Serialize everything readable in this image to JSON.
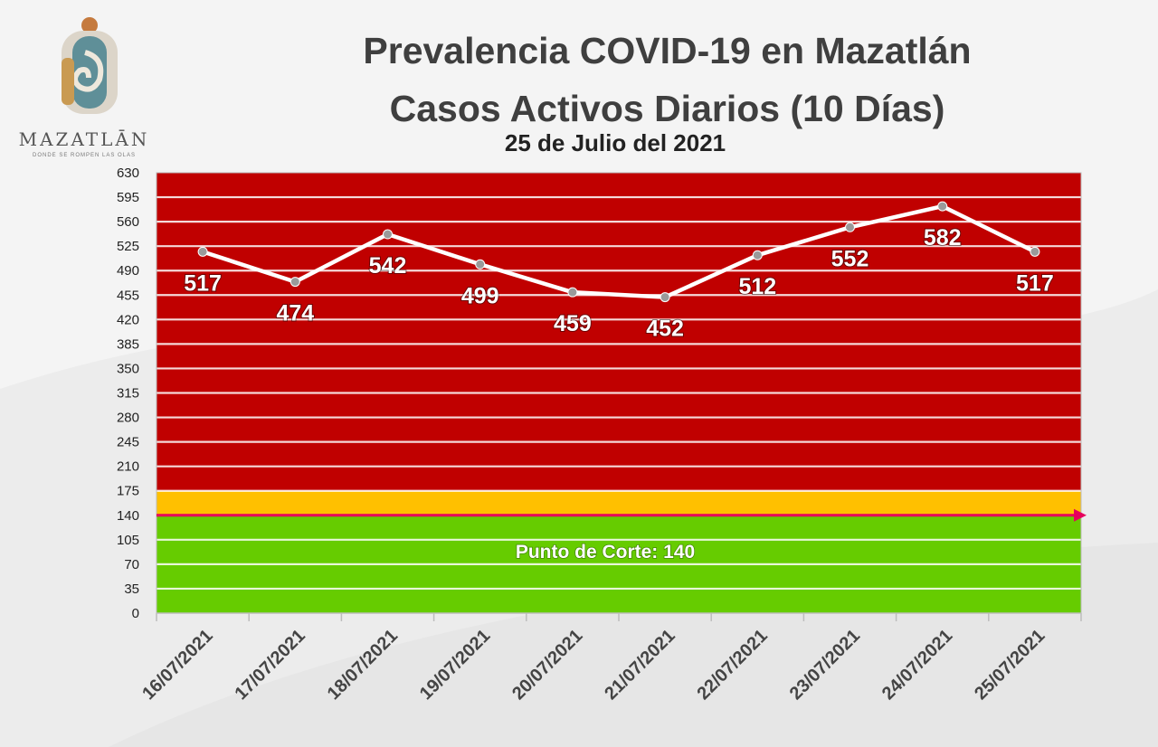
{
  "logo": {
    "name": "MAZATLĀN",
    "tagline": "DONDE SE ROMPEN LAS OLAS"
  },
  "chart_data": {
    "type": "line",
    "title": "Prevalencia COVID-19 en Mazatlán",
    "subtitle": "Casos Activos Diarios (10 Días)",
    "date_label": "25 de Julio del 2021",
    "xlabel": "",
    "ylabel": "",
    "categories": [
      "16/07/2021",
      "17/07/2021",
      "18/07/2021",
      "19/07/2021",
      "20/07/2021",
      "21/07/2021",
      "22/07/2021",
      "23/07/2021",
      "24/07/2021",
      "25/07/2021"
    ],
    "series": [
      {
        "values": [
          517,
          474,
          542,
          499,
          459,
          452,
          512,
          552,
          582,
          517
        ]
      }
    ],
    "ylim": [
      0,
      630
    ],
    "yticks": [
      0,
      35,
      70,
      105,
      140,
      175,
      210,
      245,
      280,
      315,
      350,
      385,
      420,
      455,
      490,
      525,
      560,
      595,
      630
    ],
    "grid": true,
    "cutoff": {
      "value": 140,
      "label": "Punto de Corte: 140"
    },
    "bands": [
      {
        "from": 0,
        "to": 140,
        "color": "#66cc00"
      },
      {
        "from": 140,
        "to": 175,
        "color": "#ffc000"
      },
      {
        "from": 175,
        "to": 630,
        "color": "#c00000"
      }
    ],
    "colors": {
      "line": "#ffffff",
      "marker": "#9a9a9a",
      "cutoff_line": "#e6005c",
      "axis_text": "#222222"
    }
  }
}
